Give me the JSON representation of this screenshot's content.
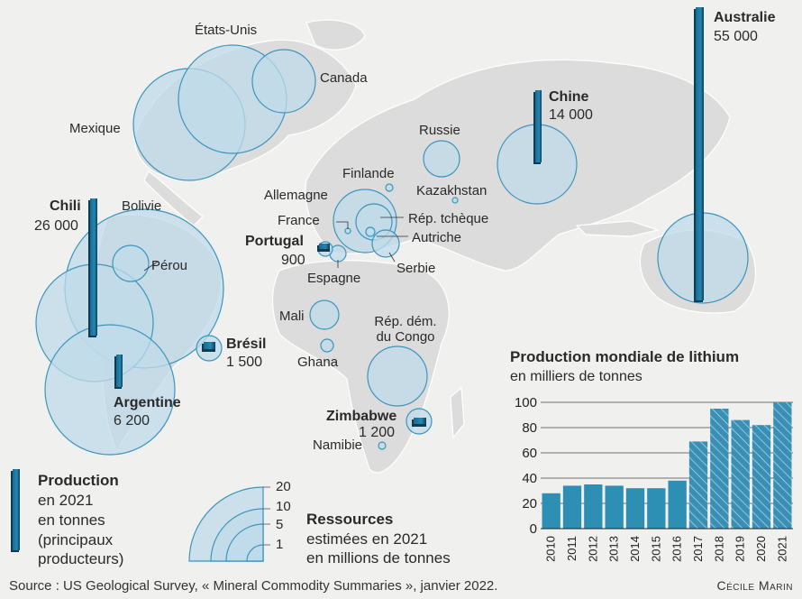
{
  "countries": {
    "etats_unis": "États-Unis",
    "canada": "Canada",
    "mexique": "Mexique",
    "russie": "Russie",
    "finlande": "Finlande",
    "kazakhstan": "Kazakhstan",
    "allemagne": "Allemagne",
    "france": "France",
    "rep_tcheque": "Rép. tchèque",
    "autriche": "Autriche",
    "serbie": "Serbie",
    "espagne": "Espagne",
    "bolivie": "Bolivie",
    "perou": "Pérou",
    "mali": "Mali",
    "ghana": "Ghana",
    "rdc": "Rép. dém. du Congo",
    "namibie": "Namibie"
  },
  "producers": {
    "australie": {
      "name": "Australie",
      "value": "55 000",
      "tonnes": 55000
    },
    "chine": {
      "name": "Chine",
      "value": "14 000",
      "tonnes": 14000
    },
    "chili": {
      "name": "Chili",
      "value": "26 000",
      "tonnes": 26000
    },
    "argentine": {
      "name": "Argentine",
      "value": "6 200",
      "tonnes": 6200
    },
    "bresil": {
      "name": "Brésil",
      "value": "1 500",
      "tonnes": 1500
    },
    "portugal": {
      "name": "Portugal",
      "value": "900",
      "tonnes": 900
    },
    "zimbabwe": {
      "name": "Zimbabwe",
      "value": "1 200",
      "tonnes": 1200
    }
  },
  "legend": {
    "production_title": "Production",
    "production_line1": "en 2021",
    "production_line2": "en tonnes",
    "production_line3": "(principaux",
    "production_line4": "producteurs)",
    "resources_title": "Ressources",
    "resources_line1": "estimées en 2021",
    "resources_line2": "en millions de tonnes",
    "resources_scale": [
      "20",
      "10",
      "5",
      "1"
    ]
  },
  "chart_data": {
    "type": "bar",
    "title": "Production mondiale de lithium",
    "subtitle": "en milliers de tonnes",
    "categories": [
      "2010",
      "2011",
      "2012",
      "2013",
      "2014",
      "2015",
      "2016",
      "2017",
      "2018",
      "2019",
      "2020",
      "2021"
    ],
    "values": [
      28,
      34,
      35,
      34,
      32,
      32,
      38,
      69,
      95,
      86,
      82,
      100
    ],
    "highlighted_from": "2017",
    "ylim": [
      0,
      100
    ],
    "yticks": [
      0,
      20,
      40,
      60,
      80,
      100
    ],
    "grid": true,
    "colors": {
      "bar": "#2e8fb4",
      "hatch": "#7fc0d8"
    }
  },
  "source": "Source : US Geological Survey, « Mineral Commodity Summaries », janvier 2022.",
  "credit": "Cécile Marin",
  "colors": {
    "background": "#f0f0ef",
    "land": "#dedede",
    "resource_fill": "#bfdbe9",
    "resource_stroke": "#3d95bd",
    "production_bar": "#1f7aa3"
  }
}
